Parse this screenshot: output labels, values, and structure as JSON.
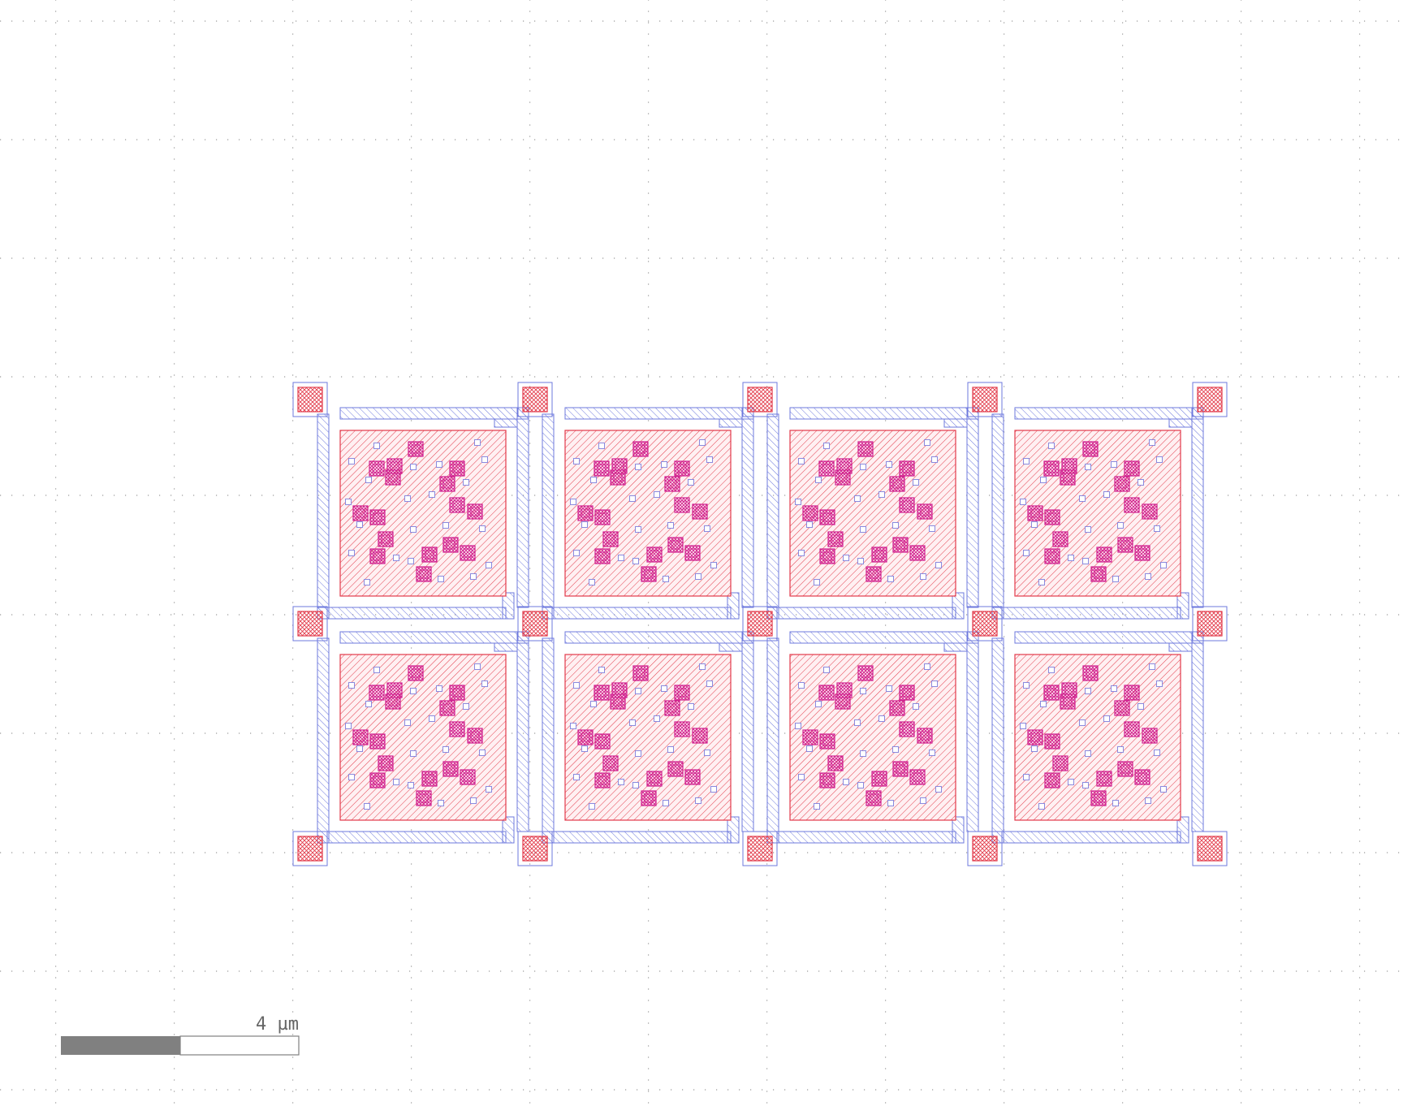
{
  "viewer": {
    "background": "#ffffff",
    "grid": {
      "visible": true,
      "dot_color": "#9a9a9a"
    }
  },
  "scale_bar": {
    "label": "4 µm",
    "fill_color": "#808080",
    "outline_color": "#808080"
  },
  "layout": {
    "cells": {
      "columns": 4,
      "rows": 2
    },
    "layers": {
      "pad": {
        "stroke": "#e23a4a",
        "hatch": "#e23a4a",
        "style": "cross-hatch"
      },
      "active": {
        "stroke": "#e23a4a",
        "fill": "#fff0f2",
        "hatch": "#e23a4a",
        "style": "diagonal"
      },
      "via": {
        "stroke": "#d0208f",
        "hatch": "#d0208f",
        "style": "cross-hatch"
      },
      "metal": {
        "stroke": "#6d78dd",
        "hatch": "#6d78dd",
        "style": "diagonal"
      },
      "contact": {
        "stroke": "#8a8ade",
        "style": "outline"
      }
    }
  }
}
